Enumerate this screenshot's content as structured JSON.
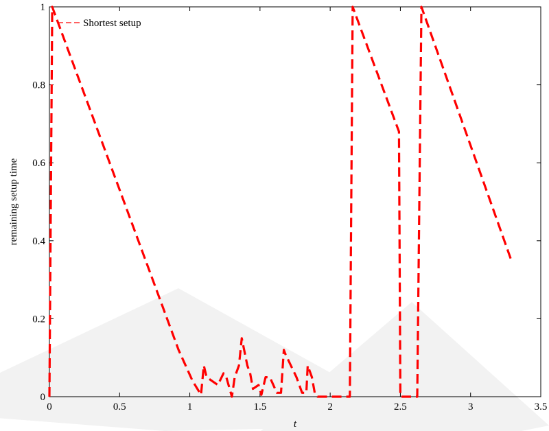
{
  "chart_data": {
    "type": "line",
    "xlabel": "t",
    "ylabel": "remaining setup time",
    "xlim": [
      0,
      3.5
    ],
    "ylim": [
      0,
      1
    ],
    "x_ticks": [
      "0",
      "0.5",
      "1",
      "1.5",
      "2",
      "2.5",
      "3",
      "3.5"
    ],
    "y_ticks": [
      "0",
      "0.2",
      "0.4",
      "0.6",
      "0.8",
      "1"
    ],
    "grid": false,
    "legend_position": "top-left",
    "series": [
      {
        "name": "Shortest setup",
        "color": "#ff0000",
        "line_style": "dashed",
        "x": [
          0.0,
          0.02,
          0.92,
          1.02,
          1.08,
          1.1,
          1.12,
          1.16,
          1.2,
          1.24,
          1.26,
          1.3,
          1.32,
          1.35,
          1.37,
          1.41,
          1.43,
          1.45,
          1.49,
          1.51,
          1.54,
          1.57,
          1.62,
          1.65,
          1.67,
          1.68,
          1.76,
          1.8,
          1.83,
          1.84,
          1.87,
          1.89,
          1.91,
          2.05,
          2.14,
          2.16,
          2.49,
          2.5,
          2.51,
          2.62,
          2.65,
          3.29
        ],
        "y": [
          0.0,
          1.0,
          0.12,
          0.04,
          0.005,
          0.08,
          0.05,
          0.04,
          0.03,
          0.06,
          0.05,
          0.0,
          0.05,
          0.08,
          0.15,
          0.08,
          0.06,
          0.02,
          0.03,
          0.005,
          0.05,
          0.05,
          0.01,
          0.01,
          0.12,
          0.11,
          0.05,
          0.01,
          0.01,
          0.08,
          0.05,
          0.01,
          0.0,
          0.0,
          0.0,
          1.0,
          0.68,
          0.0,
          0.0,
          0.0,
          1.0,
          0.35
        ]
      }
    ]
  }
}
